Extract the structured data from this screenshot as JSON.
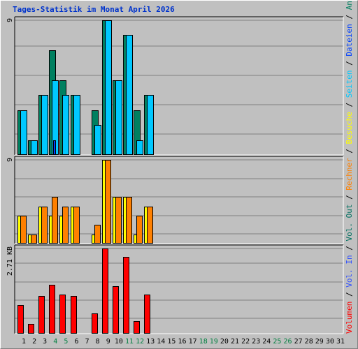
{
  "chart_data": {
    "type": "bar",
    "title": "Tages-Statistik im Monat April 2026",
    "x": [
      1,
      2,
      3,
      4,
      5,
      6,
      7,
      8,
      9,
      10,
      11,
      12,
      13,
      14,
      15,
      16,
      17,
      18,
      19,
      20,
      21,
      22,
      23,
      24,
      25,
      26,
      27,
      28,
      29,
      30,
      31
    ],
    "weekend_days": [
      4,
      5,
      11,
      12,
      18,
      19,
      25,
      26
    ],
    "colors": {
      "day_label": "#000000",
      "weekend_label": "#008040",
      "anfragen": "#008060",
      "dateien": "#00c8ff",
      "seiten": "#0040ff",
      "besuche": "#ffff00",
      "rechner": "#ff8000",
      "vol_out": "#007060",
      "vol_in": "#3050ff",
      "volumen": "#ff0000"
    },
    "panels": [
      {
        "id": "top",
        "ymax_label": "9",
        "ylim": [
          0,
          9
        ],
        "series": [
          {
            "name": "Anfragen",
            "color_key": "anfragen",
            "values": [
              3,
              1,
              4,
              7,
              5,
              4,
              0,
              3,
              9,
              5,
              8,
              3,
              4,
              0,
              0,
              0,
              0,
              0,
              0,
              0,
              0,
              0,
              0,
              0,
              0,
              0,
              0,
              0,
              0,
              0,
              0
            ]
          },
          {
            "name": "Dateien",
            "color_key": "dateien",
            "values": [
              3,
              1,
              4,
              5,
              4,
              4,
              0,
              2,
              9,
              5,
              8,
              1,
              4,
              0,
              0,
              0,
              0,
              0,
              0,
              0,
              0,
              0,
              0,
              0,
              0,
              0,
              0,
              0,
              0,
              0,
              0
            ]
          },
          {
            "name": "Seiten",
            "color_key": "seiten",
            "values": [
              0,
              0,
              0,
              1,
              0,
              0,
              0,
              0,
              0,
              0,
              0,
              0,
              0,
              0,
              0,
              0,
              0,
              0,
              0,
              0,
              0,
              0,
              0,
              0,
              0,
              0,
              0,
              0,
              0,
              0,
              0
            ]
          }
        ]
      },
      {
        "id": "middle",
        "ymax_label": "9",
        "ylim": [
          0,
          9
        ],
        "series": [
          {
            "name": "Besuche",
            "color_key": "besuche",
            "values": [
              3,
              1,
              4,
              3,
              3,
              4,
              0,
              1,
              9,
              5,
              5,
              1,
              4,
              0,
              0,
              0,
              0,
              0,
              0,
              0,
              0,
              0,
              0,
              0,
              0,
              0,
              0,
              0,
              0,
              0,
              0
            ]
          },
          {
            "name": "Rechner",
            "color_key": "rechner",
            "values": [
              3,
              1,
              4,
              5,
              4,
              4,
              0,
              2,
              9,
              5,
              5,
              3,
              4,
              0,
              0,
              0,
              0,
              0,
              0,
              0,
              0,
              0,
              0,
              0,
              0,
              0,
              0,
              0,
              0,
              0,
              0
            ]
          }
        ]
      },
      {
        "id": "bottom",
        "ymax_label": "2.71 KB",
        "ylim": [
          0,
          2.71
        ],
        "series": [
          {
            "name": "Volumen",
            "color_key": "volumen",
            "values": [
              0.9,
              0.3,
              1.2,
              1.55,
              1.25,
              1.2,
              0,
              0.65,
              2.71,
              1.5,
              2.45,
              0.4,
              1.25,
              0,
              0,
              0,
              0,
              0,
              0,
              0,
              0,
              0,
              0,
              0,
              0,
              0,
              0,
              0,
              0,
              0,
              0
            ]
          }
        ]
      }
    ],
    "legend": [
      {
        "label": "Volumen",
        "color_key": "volumen"
      },
      {
        "label": "Vol. In",
        "color_key": "vol_in"
      },
      {
        "label": "Vol. Out",
        "color_key": "vol_out"
      },
      {
        "label": "Rechner",
        "color_key": "rechner"
      },
      {
        "label": "Besuche",
        "color_key": "besuche"
      },
      {
        "label": "Seiten",
        "color_key": "dateien"
      },
      {
        "label": "Dateien",
        "color_key": "seiten"
      },
      {
        "label": "Anfragen",
        "color_key": "anfragen"
      }
    ],
    "legend_separator": "/",
    "legend_placement": "right, vertical",
    "grid": true
  }
}
